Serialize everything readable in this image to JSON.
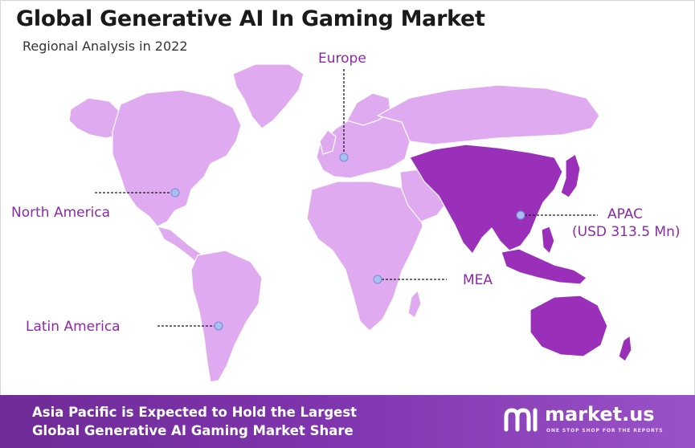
{
  "header": {
    "title": "Global Generative AI In Gaming Market",
    "subtitle": "Regional Analysis in 2022"
  },
  "regions": [
    {
      "id": "europe",
      "name": "Europe"
    },
    {
      "id": "north-america",
      "name": "North America"
    },
    {
      "id": "apac",
      "name": "APAC",
      "value_text": "(USD 313.5 Mn)"
    },
    {
      "id": "mea",
      "name": "MEA"
    },
    {
      "id": "latin-america",
      "name": "Latin America"
    }
  ],
  "highlight_region": "apac",
  "colors": {
    "land": "#dfaaef",
    "highlight": "#9a2fba",
    "label": "#8a2aa6",
    "marker": "#a9bff0",
    "footer": "#7a32a8"
  },
  "footer": {
    "line1": "Asia Pacific is Expected to Hold the Largest",
    "line2": "Global Generative AI Gaming Market Share"
  },
  "brand": {
    "name": "market.us",
    "tagline": "ONE STOP SHOP FOR THE REPORTS",
    "logo_icon": "market-us-logo-icon"
  }
}
